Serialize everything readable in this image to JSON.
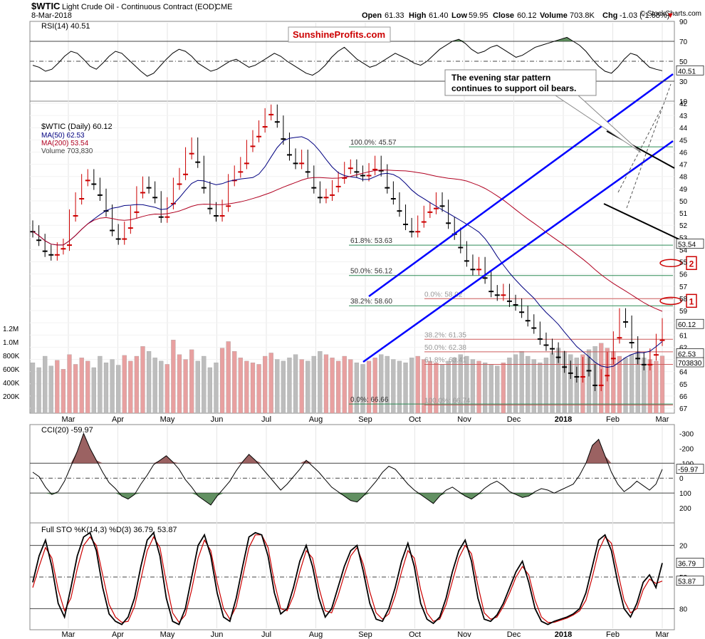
{
  "header": {
    "symbol": "$WTIC",
    "name": "Light Crude Oil - Continuous Contract (EOD)",
    "exchange": "CME",
    "date": "8-Mar-2018",
    "open_label": "Open",
    "open": "61.33",
    "high_label": "High",
    "high": "61.40",
    "low_label": "Low",
    "low": "59.95",
    "close_label": "Close",
    "close": "60.12",
    "volume_label": "Volume",
    "volume": "703.8K",
    "chg_label": "Chg",
    "chg": "-1.03 (-1.68%)",
    "credit": "© StockCharts.com"
  },
  "watermark": "SunshineProfits.com",
  "annotation": [
    "The evening star pattern",
    "continues to support oil bears."
  ],
  "colors": {
    "up": "#000000",
    "down": "#cc0000",
    "channel": "#0000ff",
    "ma50": "#000080",
    "ma200": "#b00020",
    "fib": "#2e8b57",
    "retrace": "#cd5c5c",
    "zone": "#3cb371",
    "osc_fill_hi": "#2e6b2e",
    "osc_fill_lo": "#7a2e2e",
    "stoD": "#cc0000"
  },
  "chart_data": [
    {
      "type": "line",
      "title": "RSI(14) 40.51",
      "last": 40.51,
      "ylim": [
        10,
        90
      ],
      "levels": [
        30,
        50,
        70
      ],
      "yticks": [
        90,
        70,
        50,
        30,
        10
      ],
      "values": [
        46,
        44,
        40,
        42,
        48,
        55,
        60,
        58,
        52,
        45,
        42,
        48,
        55,
        60,
        58,
        52,
        46,
        40,
        35,
        38,
        45,
        52,
        58,
        62,
        60,
        55,
        48,
        44,
        40,
        42,
        46,
        50,
        52,
        48,
        44,
        46,
        50,
        54,
        58,
        55,
        50,
        46,
        42,
        38,
        36,
        40,
        46,
        54,
        60,
        64,
        58,
        52,
        48,
        44,
        46,
        50,
        54,
        58,
        55,
        52,
        48,
        46,
        50,
        56,
        62,
        66,
        70,
        72,
        68,
        62,
        58,
        60,
        64,
        66,
        62,
        58,
        54,
        56,
        60,
        64,
        66,
        68,
        70,
        72,
        74,
        70,
        66,
        60,
        52,
        45,
        40,
        38,
        44,
        52,
        58,
        56,
        50,
        44,
        42,
        40.51
      ]
    },
    {
      "type": "line",
      "title": "$WTIC (Daily) 60.12",
      "last": 60.12,
      "ylim": [
        42,
        67
      ],
      "yticks": [
        42,
        43,
        44,
        45,
        46,
        47,
        48,
        49,
        50,
        51,
        52,
        53,
        54,
        55,
        56,
        57,
        58,
        59,
        60,
        61,
        62,
        63,
        64,
        65,
        66,
        67
      ],
      "legend": [
        "$WTIC (Daily) 60.12",
        "MA(50) 62.53",
        "MA(200) 53.54",
        "Volume 703,830"
      ],
      "x_labels": [
        "Mar",
        "Apr",
        "May",
        "Jun",
        "Jul",
        "Aug",
        "Sep",
        "Oct",
        "Nov",
        "Dec",
        "2018",
        "Feb",
        "Mar"
      ],
      "close": [
        52.5,
        53.2,
        54.1,
        54.4,
        53.9,
        53.6,
        51.2,
        49.8,
        48.3,
        47.9,
        48.6,
        49.5,
        50.8,
        52.4,
        53.1,
        52.2,
        50.9,
        49.3,
        48.5,
        48.9,
        49.7,
        51.3,
        50.2,
        48.6,
        47.8,
        46.1,
        45.3,
        46.8,
        48.9,
        50.6,
        51.2,
        50.4,
        48.3,
        47.6,
        46.9,
        45.5,
        44.7,
        43.9,
        42.9,
        42.6,
        43.5,
        44.9,
        46.2,
        46.9,
        46.3,
        47.6,
        48.9,
        49.7,
        49.5,
        48.8,
        48.1,
        47.3,
        47.1,
        47.6,
        47.9,
        47.4,
        46.8,
        47.5,
        48.9,
        49.8,
        50.8,
        51.9,
        52.5,
        51.7,
        50.9,
        50.6,
        49.8,
        50.4,
        51.8,
        52.7,
        53.8,
        54.9,
        55.6,
        55.1,
        56.3,
        57.4,
        57.7,
        57.3,
        58.2,
        58.5,
        59.1,
        59.8,
        60.4,
        61.3,
        61.8,
        62.1,
        62.8,
        63.6,
        64.1,
        64.4,
        63.3,
        63.9,
        65.1,
        64.3,
        62.9,
        61.2,
        59.3,
        59.9,
        61.6,
        62.9,
        63.4,
        62.6,
        61.4,
        60.12
      ],
      "volume": [
        620,
        560,
        700,
        580,
        650,
        540,
        720,
        600,
        680,
        640,
        560,
        700,
        620,
        660,
        590,
        710,
        640,
        700,
        820,
        760,
        680,
        640,
        600,
        900,
        720,
        660,
        780,
        640,
        700,
        560,
        620,
        800,
        880,
        760,
        680,
        640,
        620,
        600,
        700,
        740,
        660,
        640,
        680,
        720,
        660,
        640,
        700,
        760,
        720,
        680,
        640,
        700,
        660,
        620,
        600,
        640,
        680,
        720,
        700,
        660,
        640,
        620,
        680,
        700,
        660,
        640,
        620,
        600,
        640,
        680,
        720,
        700,
        660,
        640,
        620,
        600,
        580,
        620,
        680,
        720,
        760,
        700,
        660,
        620,
        680,
        740,
        800,
        760,
        720,
        680,
        720,
        780,
        820,
        860,
        800,
        760,
        700,
        680,
        720,
        760,
        680,
        660,
        640,
        703.8
      ],
      "ma50": 62.53,
      "ma200": 53.54,
      "volume_last": "703830",
      "volume_ticks": [
        "1.2M",
        "1.0M",
        "800K",
        "600K",
        "400K",
        "200K"
      ],
      "fib_levels": [
        {
          "label": "0.0%: 66.66",
          "value": 66.66
        },
        {
          "label": "38.2%: 58.60",
          "value": 58.6
        },
        {
          "label": "50.0%: 56.12",
          "value": 56.12
        },
        {
          "label": "61.8%: 53.63",
          "value": 53.63
        },
        {
          "label": "100.0%: 45.57",
          "value": 45.57
        }
      ],
      "retrace_levels": [
        {
          "label": "100.0%: 66.74",
          "value": 66.74
        },
        {
          "label": "61.8%: 63.41",
          "value": 63.41
        },
        {
          "label": "50.0%: 62.38",
          "value": 62.38
        },
        {
          "label": "38.2%: 61.35",
          "value": 61.35
        },
        {
          "label": "0.0%: 58.02",
          "value": 58.02
        }
      ],
      "right_labels": [
        "62.53",
        "60.12",
        "53.54",
        "703830"
      ],
      "markers": [
        "1",
        "2"
      ]
    },
    {
      "type": "line",
      "title": "CCI(20) -59.97",
      "last": -59.97,
      "ylim": [
        -350,
        300
      ],
      "yticks": [
        200,
        100,
        0,
        -100,
        -200,
        -300
      ],
      "values": [
        -40,
        -10,
        60,
        110,
        90,
        20,
        -80,
        -180,
        -300,
        -200,
        -120,
        -40,
        30,
        70,
        120,
        140,
        110,
        40,
        -20,
        -90,
        -120,
        -150,
        -110,
        -60,
        10,
        60,
        120,
        150,
        180,
        120,
        70,
        20,
        -50,
        -110,
        -160,
        -120,
        -70,
        -20,
        30,
        80,
        40,
        -10,
        -60,
        -120,
        -80,
        -40,
        10,
        60,
        90,
        120,
        150,
        160,
        120,
        70,
        20,
        -40,
        -80,
        -60,
        -10,
        40,
        80,
        110,
        140,
        170,
        120,
        80,
        60,
        90,
        120,
        140,
        110,
        70,
        40,
        20,
        50,
        90,
        110,
        130,
        120,
        90,
        70,
        80,
        100,
        80,
        60,
        40,
        -20,
        -100,
        -220,
        -260,
        -150,
        -40,
        40,
        90,
        60,
        20,
        50,
        80,
        40,
        -59.97
      ]
    },
    {
      "type": "line",
      "title": "Full STO %K(14,3) %D(3) 36.79, 53.87",
      "k_last": 36.79,
      "d_last": 53.87,
      "ylim": [
        0,
        100
      ],
      "levels": [
        20,
        50,
        80
      ],
      "yticks": [
        80,
        50,
        20
      ],
      "k": [
        55,
        30,
        15,
        40,
        75,
        88,
        60,
        30,
        12,
        8,
        25,
        60,
        85,
        92,
        95,
        88,
        70,
        40,
        15,
        8,
        30,
        70,
        92,
        95,
        80,
        50,
        20,
        10,
        30,
        65,
        88,
        92,
        70,
        40,
        12,
        8,
        10,
        30,
        65,
        85,
        80,
        60,
        35,
        20,
        40,
        70,
        88,
        80,
        60,
        40,
        25,
        20,
        45,
        75,
        90,
        92,
        80,
        60,
        35,
        18,
        40,
        75,
        90,
        94,
        88,
        70,
        45,
        25,
        15,
        35,
        70,
        90,
        92,
        86,
        75,
        60,
        45,
        35,
        55,
        80,
        92,
        95,
        92,
        90,
        88,
        85,
        80,
        65,
        40,
        15,
        10,
        25,
        55,
        80,
        88,
        75,
        55,
        48,
        60,
        36.79
      ],
      "d": [
        60,
        40,
        22,
        32,
        62,
        82,
        70,
        42,
        20,
        12,
        20,
        48,
        76,
        88,
        93,
        92,
        78,
        52,
        25,
        12,
        22,
        55,
        84,
        93,
        86,
        62,
        32,
        15,
        25,
        55,
        80,
        90,
        78,
        50,
        22,
        10,
        10,
        22,
        55,
        80,
        82,
        68,
        45,
        25,
        32,
        60,
        82,
        84,
        68,
        48,
        30,
        22,
        38,
        64,
        84,
        90,
        85,
        68,
        45,
        25,
        32,
        62,
        84,
        92,
        90,
        76,
        54,
        32,
        20,
        28,
        58,
        84,
        90,
        88,
        78,
        65,
        50,
        40,
        48,
        72,
        88,
        93,
        93,
        91,
        89,
        86,
        82,
        72,
        50,
        25,
        12,
        18,
        45,
        72,
        84,
        80,
        62,
        52,
        56,
        53.87
      ]
    }
  ]
}
